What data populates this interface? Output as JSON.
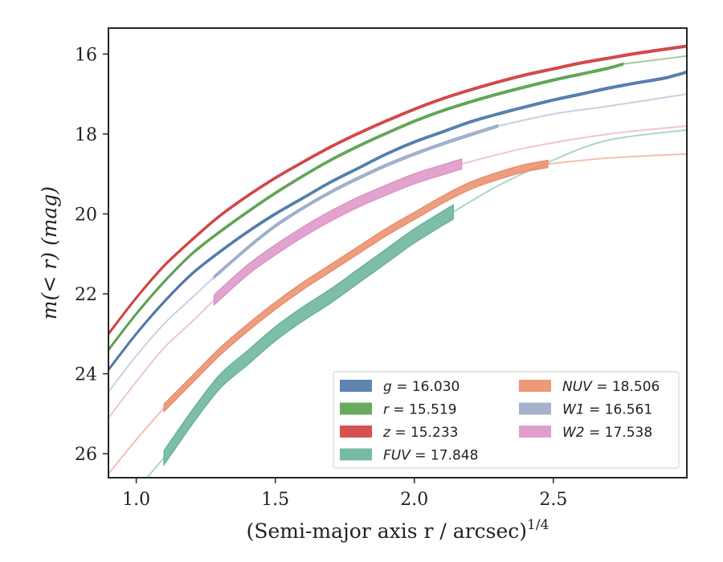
{
  "chart_data": {
    "type": "line",
    "xlabel": "(Semi-major axis r / arcsec)",
    "xlabel_exponent": "1/4",
    "ylabel": "m(< r) (mag)",
    "xlim": [
      0.9,
      2.98
    ],
    "ylim": [
      26.6,
      15.35
    ],
    "y_inverted": true,
    "grid": false,
    "legend_position": "lower-right",
    "xticks": [
      1.0,
      1.5,
      2.0,
      2.5
    ],
    "xtick_labels": [
      "1.0",
      "1.5",
      "2.0",
      "2.5"
    ],
    "yticks": [
      16,
      18,
      20,
      22,
      24,
      26
    ],
    "ytick_labels": [
      "16",
      "18",
      "20",
      "22",
      "24",
      "26"
    ],
    "series": [
      {
        "name": "g",
        "legend_label": "g = 16.030",
        "color": "#4c78a8",
        "band_width": 0.05,
        "band_range": [
          0.9,
          2.98
        ],
        "extrapolation": [],
        "points": [
          [
            0.9,
            23.9
          ],
          [
            1.0,
            23.0
          ],
          [
            1.1,
            22.2
          ],
          [
            1.2,
            21.5
          ],
          [
            1.3,
            20.95
          ],
          [
            1.4,
            20.45
          ],
          [
            1.5,
            20.0
          ],
          [
            1.6,
            19.6
          ],
          [
            1.7,
            19.2
          ],
          [
            1.8,
            18.85
          ],
          [
            1.9,
            18.5
          ],
          [
            2.0,
            18.2
          ],
          [
            2.1,
            17.95
          ],
          [
            2.2,
            17.7
          ],
          [
            2.3,
            17.5
          ],
          [
            2.4,
            17.32
          ],
          [
            2.5,
            17.15
          ],
          [
            2.6,
            17.0
          ],
          [
            2.7,
            16.85
          ],
          [
            2.8,
            16.72
          ],
          [
            2.9,
            16.6
          ],
          [
            2.98,
            16.45
          ]
        ]
      },
      {
        "name": "r",
        "legend_label": "r = 15.519",
        "color": "#59a14f",
        "band_width": 0.05,
        "band_range": [
          0.9,
          2.75
        ],
        "extrapolation": [
          [
            2.75,
            16.25
          ],
          [
            2.98,
            16.05
          ]
        ],
        "points": [
          [
            0.9,
            23.4
          ],
          [
            1.0,
            22.5
          ],
          [
            1.1,
            21.7
          ],
          [
            1.2,
            21.0
          ],
          [
            1.3,
            20.45
          ],
          [
            1.4,
            19.95
          ],
          [
            1.5,
            19.48
          ],
          [
            1.6,
            19.05
          ],
          [
            1.7,
            18.65
          ],
          [
            1.8,
            18.3
          ],
          [
            1.9,
            17.98
          ],
          [
            2.0,
            17.68
          ],
          [
            2.1,
            17.42
          ],
          [
            2.2,
            17.2
          ],
          [
            2.3,
            17.0
          ],
          [
            2.4,
            16.82
          ],
          [
            2.5,
            16.65
          ],
          [
            2.6,
            16.5
          ],
          [
            2.7,
            16.35
          ],
          [
            2.75,
            16.25
          ]
        ]
      },
      {
        "name": "z",
        "legend_label": "z = 15.233",
        "color": "#d03f3f",
        "band_width": 0.05,
        "band_range": [
          0.9,
          2.98
        ],
        "extrapolation": [],
        "points": [
          [
            0.9,
            23.0
          ],
          [
            1.0,
            22.1
          ],
          [
            1.1,
            21.3
          ],
          [
            1.2,
            20.65
          ],
          [
            1.3,
            20.05
          ],
          [
            1.4,
            19.55
          ],
          [
            1.5,
            19.1
          ],
          [
            1.6,
            18.7
          ],
          [
            1.7,
            18.32
          ],
          [
            1.8,
            17.98
          ],
          [
            1.9,
            17.67
          ],
          [
            2.0,
            17.38
          ],
          [
            2.1,
            17.12
          ],
          [
            2.2,
            16.9
          ],
          [
            2.3,
            16.7
          ],
          [
            2.4,
            16.52
          ],
          [
            2.5,
            16.37
          ],
          [
            2.6,
            16.22
          ],
          [
            2.7,
            16.1
          ],
          [
            2.8,
            15.98
          ],
          [
            2.9,
            15.88
          ],
          [
            2.98,
            15.8
          ]
        ]
      },
      {
        "name": "FUV",
        "legend_label": "FUV = 17.848",
        "color": "#67b39a",
        "band_width": 0.35,
        "band_range": [
          1.1,
          2.14
        ],
        "extrapolation": [
          [
            0.9,
            27.6
          ],
          [
            1.0,
            26.9
          ],
          [
            1.1,
            26.1
          ],
          [
            2.14,
            19.95
          ],
          [
            2.3,
            19.3
          ],
          [
            2.5,
            18.65
          ],
          [
            2.7,
            18.15
          ],
          [
            2.98,
            17.9
          ]
        ],
        "points": [
          [
            1.1,
            26.1
          ],
          [
            1.2,
            25.1
          ],
          [
            1.3,
            24.2
          ],
          [
            1.4,
            23.6
          ],
          [
            1.5,
            23.0
          ],
          [
            1.6,
            22.5
          ],
          [
            1.7,
            22.05
          ],
          [
            1.8,
            21.55
          ],
          [
            1.9,
            21.05
          ],
          [
            2.0,
            20.55
          ],
          [
            2.14,
            19.95
          ]
        ]
      },
      {
        "name": "NUV",
        "legend_label": "NUV = 18.506",
        "color": "#ea8d6a",
        "band_width": 0.18,
        "band_range": [
          1.1,
          2.48
        ],
        "extrapolation": [
          [
            0.9,
            26.5
          ],
          [
            1.0,
            25.65
          ],
          [
            1.1,
            24.85
          ],
          [
            2.48,
            18.75
          ],
          [
            2.7,
            18.6
          ],
          [
            2.98,
            18.5
          ]
        ],
        "points": [
          [
            1.1,
            24.85
          ],
          [
            1.2,
            24.15
          ],
          [
            1.3,
            23.45
          ],
          [
            1.4,
            22.85
          ],
          [
            1.5,
            22.3
          ],
          [
            1.6,
            21.8
          ],
          [
            1.7,
            21.35
          ],
          [
            1.8,
            20.9
          ],
          [
            1.9,
            20.45
          ],
          [
            2.0,
            20.05
          ],
          [
            2.1,
            19.65
          ],
          [
            2.2,
            19.3
          ],
          [
            2.3,
            19.05
          ],
          [
            2.4,
            18.85
          ],
          [
            2.48,
            18.75
          ]
        ]
      },
      {
        "name": "W1",
        "legend_label": "W1 = 16.561",
        "color": "#9aaac8",
        "band_width": 0.06,
        "band_range": [
          1.28,
          2.3
        ],
        "extrapolation": [
          [
            0.9,
            24.45
          ],
          [
            1.0,
            23.55
          ],
          [
            1.1,
            22.75
          ],
          [
            1.2,
            22.1
          ],
          [
            1.28,
            21.58
          ],
          [
            2.3,
            17.8
          ],
          [
            2.5,
            17.5
          ],
          [
            2.7,
            17.3
          ],
          [
            2.98,
            17.0
          ]
        ],
        "points": [
          [
            1.28,
            21.58
          ],
          [
            1.4,
            20.85
          ],
          [
            1.5,
            20.3
          ],
          [
            1.6,
            19.85
          ],
          [
            1.7,
            19.45
          ],
          [
            1.8,
            19.1
          ],
          [
            1.9,
            18.78
          ],
          [
            2.0,
            18.5
          ],
          [
            2.1,
            18.25
          ],
          [
            2.2,
            18.02
          ],
          [
            2.3,
            17.8
          ]
        ]
      },
      {
        "name": "W2",
        "legend_label": "W2 = 17.538",
        "color": "#dd94c6",
        "band_width": 0.25,
        "band_range": [
          1.28,
          2.17
        ],
        "extrapolation": [
          [
            0.9,
            25.1
          ],
          [
            1.0,
            24.2
          ],
          [
            1.1,
            23.35
          ],
          [
            1.2,
            22.7
          ],
          [
            1.28,
            22.15
          ],
          [
            2.17,
            18.75
          ],
          [
            2.4,
            18.35
          ],
          [
            2.7,
            18.0
          ],
          [
            2.98,
            17.8
          ]
        ],
        "points": [
          [
            1.28,
            22.15
          ],
          [
            1.4,
            21.4
          ],
          [
            1.5,
            20.9
          ],
          [
            1.6,
            20.45
          ],
          [
            1.7,
            20.05
          ],
          [
            1.8,
            19.7
          ],
          [
            1.9,
            19.4
          ],
          [
            2.0,
            19.12
          ],
          [
            2.1,
            18.9
          ],
          [
            2.17,
            18.75
          ]
        ]
      }
    ]
  }
}
